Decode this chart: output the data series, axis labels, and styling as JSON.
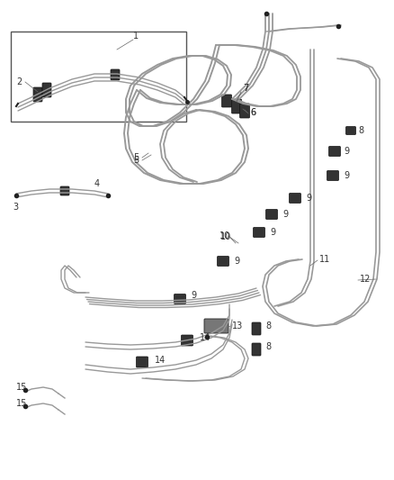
{
  "bg_color": "#ffffff",
  "line_color": "#999999",
  "dark_color": "#222222",
  "fig_width": 4.38,
  "fig_height": 5.33,
  "dpi": 100
}
